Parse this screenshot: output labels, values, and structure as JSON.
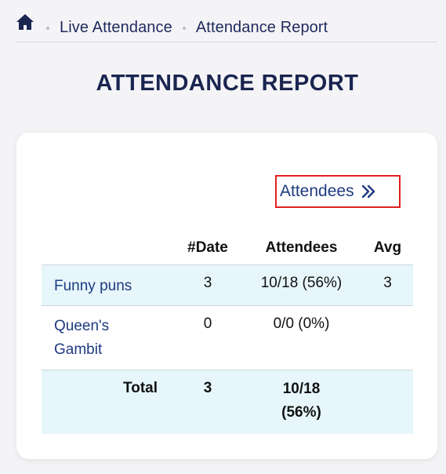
{
  "breadcrumb": {
    "home_icon": "home-icon",
    "items": [
      "Live Attendance",
      "Attendance Report"
    ]
  },
  "page": {
    "title": "ATTENDANCE REPORT"
  },
  "attendees_link": {
    "label": "Attendees",
    "icon": "double-chevron-right-icon"
  },
  "table": {
    "headers": [
      "",
      "#Date",
      "Attendees",
      "Avg"
    ],
    "rows": [
      {
        "name": "Funny puns",
        "dates": "3",
        "attendees": "10/18 (56%)",
        "avg": "3"
      },
      {
        "name": "Queen's Gambit",
        "dates": "0",
        "attendees": "0/0 (0%)",
        "avg": ""
      }
    ],
    "total": {
      "label": "Total",
      "dates": "3",
      "attendees": "10/18 (56%)",
      "avg": ""
    }
  },
  "colors": {
    "link": "#1e3a80",
    "title": "#1a2550",
    "row_highlight": "#e6f6fa",
    "focus_outline": "#e02020"
  }
}
